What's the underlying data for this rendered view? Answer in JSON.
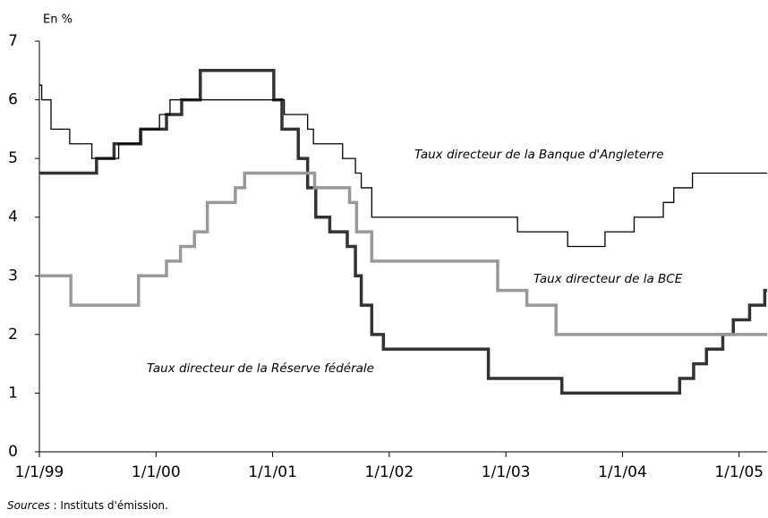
{
  "chart_data": {
    "type": "line",
    "step": "post",
    "unit_label": "En %",
    "source_label": "Sources",
    "source_text": " : Instituts d'émission.",
    "xlim": [
      1999,
      2005.24
    ],
    "xticks": [
      {
        "value": 1999,
        "label": "1/1/99"
      },
      {
        "value": 2000,
        "label": "1/1/00"
      },
      {
        "value": 2001,
        "label": "1/1/01"
      },
      {
        "value": 2002,
        "label": "1/1/02"
      },
      {
        "value": 2003,
        "label": "1/1/03"
      },
      {
        "value": 2004,
        "label": "1/1/04"
      },
      {
        "value": 2005,
        "label": "1/1/05"
      }
    ],
    "ylim": [
      0,
      7
    ],
    "yticks": [
      0,
      1,
      2,
      3,
      4,
      5,
      6,
      7
    ],
    "grid": false,
    "annotations": [
      "Taux directeur de la Réserve fédérale",
      "Taux directeur de la BCE",
      "Taux directeur de la Banque d'Angleterre"
    ],
    "series": [
      {
        "color": "#333333",
        "width": 3.5,
        "x": [
          1999.0,
          1999.49,
          1999.64,
          1999.87,
          2000.09,
          2000.22,
          2000.38,
          2001.01,
          2001.08,
          2001.22,
          2001.3,
          2001.37,
          2001.49,
          2001.64,
          2001.71,
          2001.76,
          2001.85,
          2001.95,
          2002.85,
          2003.48,
          2004.49,
          2004.61,
          2004.72,
          2004.86,
          2004.95,
          2005.09,
          2005.22
        ],
        "values": [
          4.75,
          5.0,
          5.25,
          5.5,
          5.75,
          6.0,
          6.5,
          6.0,
          5.5,
          5.0,
          4.5,
          4.0,
          3.75,
          3.5,
          3.0,
          2.5,
          2.0,
          1.75,
          1.25,
          1.0,
          1.25,
          1.5,
          1.75,
          2.0,
          2.25,
          2.5,
          2.75
        ]
      },
      {
        "color": "#999999",
        "width": 3.5,
        "x": [
          1999.0,
          1999.27,
          1999.85,
          2000.09,
          2000.21,
          2000.33,
          2000.44,
          2000.68,
          2000.76,
          2001.36,
          2001.66,
          2001.72,
          2001.85,
          2002.93,
          2003.18,
          2003.43
        ],
        "values": [
          3.0,
          2.5,
          3.0,
          3.25,
          3.5,
          3.75,
          4.25,
          4.5,
          4.75,
          4.5,
          4.25,
          3.75,
          3.25,
          2.75,
          2.5,
          2.0
        ]
      },
      {
        "color": "#000000",
        "width": 1.3,
        "x": [
          1999.0,
          1999.02,
          1999.1,
          1999.26,
          1999.45,
          1999.68,
          1999.86,
          2000.03,
          2000.12,
          2001.1,
          2001.3,
          2001.35,
          2001.6,
          2001.71,
          2001.76,
          2001.85,
          2003.1,
          2003.53,
          2003.85,
          2004.1,
          2004.35,
          2004.44,
          2004.6
        ],
        "values": [
          6.25,
          6.0,
          5.5,
          5.25,
          5.0,
          5.25,
          5.5,
          5.75,
          6.0,
          5.75,
          5.5,
          5.25,
          5.0,
          4.75,
          4.5,
          4.0,
          3.75,
          3.5,
          3.75,
          4.0,
          4.25,
          4.5,
          4.75
        ]
      }
    ]
  }
}
